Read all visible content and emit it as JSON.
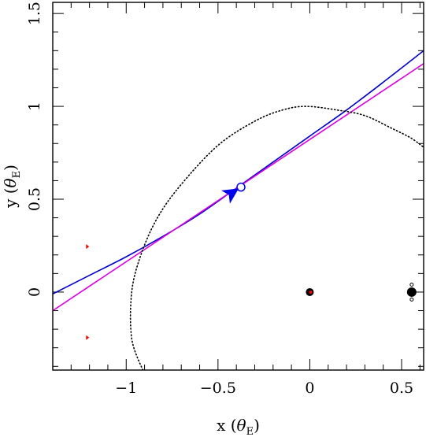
{
  "chart_data": {
    "type": "line",
    "xlabel": {
      "prefix": "x (",
      "theta": "θ",
      "sub": "E",
      "suffix": ")"
    },
    "ylabel": {
      "prefix": "y (",
      "theta": "θ",
      "sub": "E",
      "suffix": ")"
    },
    "xlim": [
      -1.4,
      0.62
    ],
    "ylim": [
      -0.42,
      1.56
    ],
    "x_major_ticks": [
      -1,
      -0.5,
      0,
      0.5
    ],
    "x_tick_labels": [
      "−1",
      "−0.5",
      "0",
      "0.5"
    ],
    "y_major_ticks": [
      0,
      0.5,
      1,
      1.5
    ],
    "y_tick_labels": [
      "0",
      "0.5",
      "1",
      "1.5"
    ],
    "x_minor_step": 0.1,
    "y_minor_step": 0.1,
    "grid": false,
    "series": [
      {
        "color": "#0000cc",
        "style": "solid",
        "x": [
          -1.4,
          -1.2,
          -1.0,
          -0.8,
          -0.6,
          -0.4,
          -0.2,
          0.0,
          0.2,
          0.4,
          0.62
        ],
        "y": [
          -0.01,
          0.09,
          0.19,
          0.3,
          0.42,
          0.56,
          0.7,
          0.84,
          0.98,
          1.13,
          1.3
        ]
      },
      {
        "color": "#dd00dd",
        "style": "solid",
        "x": [
          -1.4,
          0.62
        ],
        "y": [
          -0.1,
          1.23
        ]
      },
      {
        "color": "#000000",
        "style": "dotted",
        "x": [
          -0.91,
          -0.97,
          -0.97,
          -0.92,
          -0.83,
          -0.7,
          -0.5,
          -0.3,
          -0.15,
          -0.02,
          0.15,
          0.3,
          0.45,
          0.55,
          0.62
        ],
        "y": [
          -0.42,
          -0.25,
          0.0,
          0.2,
          0.4,
          0.58,
          0.79,
          0.92,
          0.98,
          1.0,
          0.98,
          0.95,
          0.88,
          0.83,
          0.78
        ]
      }
    ],
    "markers": [
      {
        "shape": "open-circle",
        "color": "#0000ee",
        "x": -0.375,
        "y": 0.565
      },
      {
        "shape": "arrowhead",
        "color": "#0000ee",
        "x": -0.43,
        "y": 0.53,
        "direction_deg": 33
      },
      {
        "shape": "filled-circle",
        "color": "#000000",
        "x": 0.0,
        "y": 0.0,
        "size": "medium"
      },
      {
        "shape": "filled-circle",
        "color": "#ff0000",
        "x": 0.005,
        "y": 0.0,
        "size": "tiny"
      },
      {
        "shape": "filled-circle",
        "color": "#000000",
        "x": 0.555,
        "y": 0.0,
        "size": "large"
      },
      {
        "shape": "open-circle-small",
        "color": "#000000",
        "x": 0.555,
        "y": 0.04
      },
      {
        "shape": "open-circle-small",
        "color": "#000000",
        "x": 0.555,
        "y": -0.04
      },
      {
        "shape": "red-tick",
        "color": "#ff0000",
        "x": -1.21,
        "y": 0.245
      },
      {
        "shape": "red-tick",
        "color": "#ff0000",
        "x": -1.21,
        "y": -0.245
      }
    ]
  }
}
